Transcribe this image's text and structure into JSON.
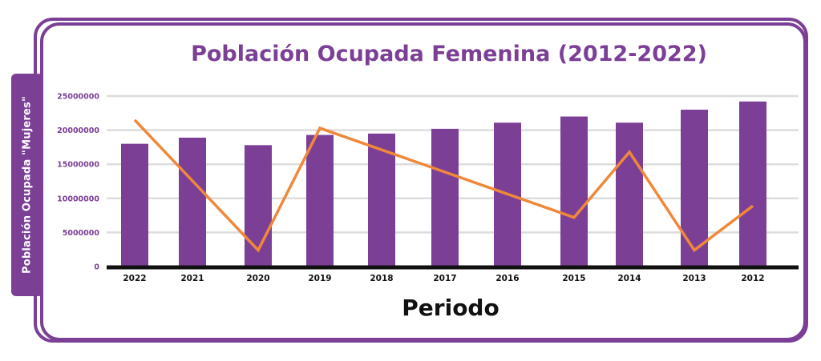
{
  "chart_data": {
    "type": "bar",
    "title": "Población Ocupada Femenina (2012-2022)",
    "xlabel": "Periodo",
    "ylabel": "Población Ocupada \"Mujeres\"",
    "categories": [
      "2022",
      "2021",
      "2020",
      "2019",
      "2018",
      "2017",
      "2016",
      "2015",
      "2014",
      "2013",
      "2012"
    ],
    "series": [
      {
        "type": "bar",
        "values": [
          18000000,
          18900000,
          17800000,
          19300000,
          19500000,
          20200000,
          21100000,
          22000000,
          21100000,
          23000000,
          24200000
        ]
      },
      {
        "type": "line",
        "values": [
          21500000,
          null,
          2400000,
          20300000,
          null,
          null,
          null,
          7200000,
          16800000,
          2400000,
          8900000
        ]
      }
    ],
    "yticks": [
      "0",
      "5000000",
      "10000000",
      "15000000",
      "20000000",
      "25000000"
    ],
    "ylim": [
      0,
      25000000
    ],
    "grid": true,
    "colors": {
      "bar": "#7b3f96",
      "line": "#f0883a",
      "accent": "#7b3f96",
      "axis": "#111111",
      "grid": "#dddddd"
    }
  }
}
